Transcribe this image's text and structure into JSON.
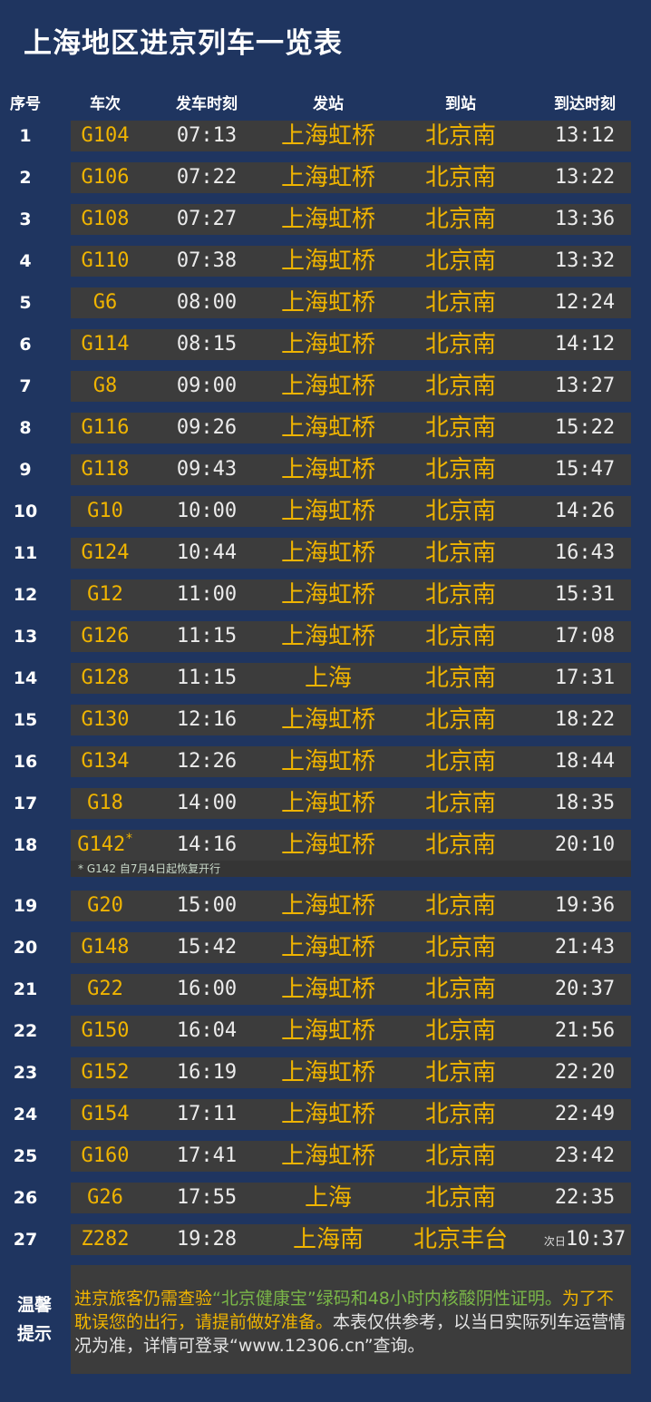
{
  "title": "上海地区进京列车一览表",
  "headers": [
    "序号",
    "车次",
    "发车时刻",
    "发站",
    "到站",
    "到达时刻"
  ],
  "colors": {
    "background": "#1f3560",
    "row": "#3c3c3c",
    "yellow": "#f0b400",
    "green": "#7ab648",
    "white": "#ececec"
  },
  "rows": [
    {
      "no": "1",
      "train": "G104",
      "dep": "07:13",
      "from": "上海虹桥",
      "to": "北京南",
      "arr": "13:12"
    },
    {
      "no": "2",
      "train": "G106",
      "dep": "07:22",
      "from": "上海虹桥",
      "to": "北京南",
      "arr": "13:22"
    },
    {
      "no": "3",
      "train": "G108",
      "dep": "07:27",
      "from": "上海虹桥",
      "to": "北京南",
      "arr": "13:36"
    },
    {
      "no": "4",
      "train": "G110",
      "dep": "07:38",
      "from": "上海虹桥",
      "to": "北京南",
      "arr": "13:32"
    },
    {
      "no": "5",
      "train": "G6",
      "dep": "08:00",
      "from": "上海虹桥",
      "to": "北京南",
      "arr": "12:24"
    },
    {
      "no": "6",
      "train": "G114",
      "dep": "08:15",
      "from": "上海虹桥",
      "to": "北京南",
      "arr": "14:12"
    },
    {
      "no": "7",
      "train": "G8",
      "dep": "09:00",
      "from": "上海虹桥",
      "to": "北京南",
      "arr": "13:27"
    },
    {
      "no": "8",
      "train": "G116",
      "dep": "09:26",
      "from": "上海虹桥",
      "to": "北京南",
      "arr": "15:22"
    },
    {
      "no": "9",
      "train": "G118",
      "dep": "09:43",
      "from": "上海虹桥",
      "to": "北京南",
      "arr": "15:47"
    },
    {
      "no": "10",
      "train": "G10",
      "dep": "10:00",
      "from": "上海虹桥",
      "to": "北京南",
      "arr": "14:26"
    },
    {
      "no": "11",
      "train": "G124",
      "dep": "10:44",
      "from": "上海虹桥",
      "to": "北京南",
      "arr": "16:43"
    },
    {
      "no": "12",
      "train": "G12",
      "dep": "11:00",
      "from": "上海虹桥",
      "to": "北京南",
      "arr": "15:31"
    },
    {
      "no": "13",
      "train": "G126",
      "dep": "11:15",
      "from": "上海虹桥",
      "to": "北京南",
      "arr": "17:08"
    },
    {
      "no": "14",
      "train": "G128",
      "dep": "11:15",
      "from": "上海",
      "to": "北京南",
      "arr": "17:31"
    },
    {
      "no": "15",
      "train": "G130",
      "dep": "12:16",
      "from": "上海虹桥",
      "to": "北京南",
      "arr": "18:22"
    },
    {
      "no": "16",
      "train": "G134",
      "dep": "12:26",
      "from": "上海虹桥",
      "to": "北京南",
      "arr": "18:44"
    },
    {
      "no": "17",
      "train": "G18",
      "dep": "14:00",
      "from": "上海虹桥",
      "to": "北京南",
      "arr": "18:35"
    },
    {
      "no": "18",
      "train": "G142",
      "star": "*",
      "dep": "14:16",
      "from": "上海虹桥",
      "to": "北京南",
      "arr": "20:10",
      "note": "* G142 自7月4日起恢复开行"
    },
    {
      "no": "19",
      "train": "G20",
      "dep": "15:00",
      "from": "上海虹桥",
      "to": "北京南",
      "arr": "19:36"
    },
    {
      "no": "20",
      "train": "G148",
      "dep": "15:42",
      "from": "上海虹桥",
      "to": "北京南",
      "arr": "21:43"
    },
    {
      "no": "21",
      "train": "G22",
      "dep": "16:00",
      "from": "上海虹桥",
      "to": "北京南",
      "arr": "20:37"
    },
    {
      "no": "22",
      "train": "G150",
      "dep": "16:04",
      "from": "上海虹桥",
      "to": "北京南",
      "arr": "21:56"
    },
    {
      "no": "23",
      "train": "G152",
      "dep": "16:19",
      "from": "上海虹桥",
      "to": "北京南",
      "arr": "22:20"
    },
    {
      "no": "24",
      "train": "G154",
      "dep": "17:11",
      "from": "上海虹桥",
      "to": "北京南",
      "arr": "22:49"
    },
    {
      "no": "25",
      "train": "G160",
      "dep": "17:41",
      "from": "上海虹桥",
      "to": "北京南",
      "arr": "23:42"
    },
    {
      "no": "26",
      "train": "G26",
      "dep": "17:55",
      "from": "上海",
      "to": "北京南",
      "arr": "22:35"
    },
    {
      "no": "27",
      "train": "Z282",
      "dep": "19:28",
      "from": "上海南",
      "to": "北京丰台",
      "arr": "10:37",
      "arr_prefix": "次日"
    }
  ],
  "tips": {
    "label_line1": "温馨",
    "label_line2": "提示",
    "seg1": "进京旅客仍需查验",
    "seg2": "“北京健康宝”绿码和48小时内核酸阴性证明。",
    "seg3": "为了不耽误您的出行，请提前做好准备。",
    "seg4": "本表仅供参考，以当日实际列车运营情况为准，详情可登录“www.12306.cn”查询。"
  }
}
